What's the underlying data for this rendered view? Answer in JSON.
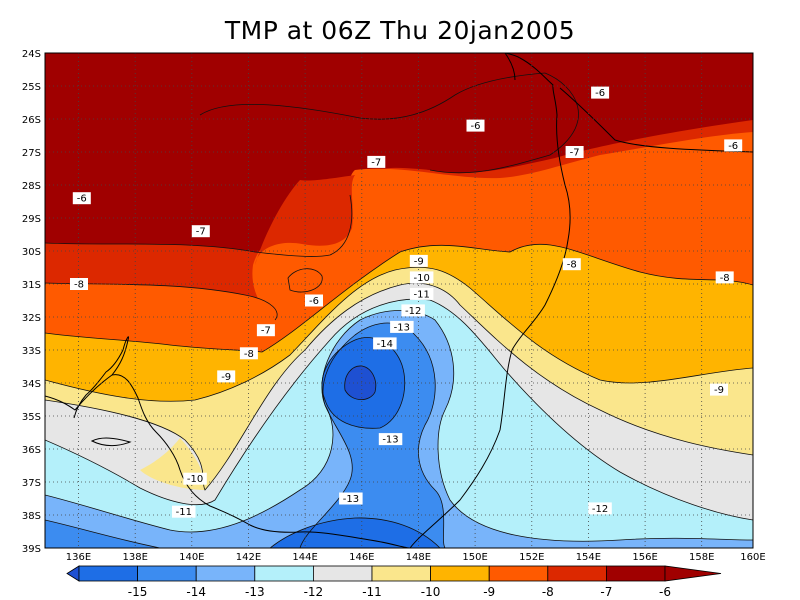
{
  "title": "TMP at 06Z Thu 20jan2005",
  "map": {
    "lat_labels": [
      "24S",
      "25S",
      "26S",
      "27S",
      "28S",
      "29S",
      "30S",
      "31S",
      "32S",
      "33S",
      "34S",
      "35S",
      "36S",
      "37S",
      "38S",
      "39S"
    ],
    "lon_labels": [
      "136E",
      "138E",
      "140E",
      "142E",
      "144E",
      "146E",
      "148E",
      "150E",
      "152E",
      "154E",
      "156E",
      "158E",
      "160E"
    ],
    "contour_labels": [
      {
        "text": "-6",
        "lon": 154.6,
        "lat": -25.2
      },
      {
        "text": "-6",
        "lon": 150.2,
        "lat": -26.2
      },
      {
        "text": "-6",
        "lon": 159.3,
        "lat": -26.8
      },
      {
        "text": "-6",
        "lon": 136.3,
        "lat": -28.4
      },
      {
        "text": "-6",
        "lon": 144.5,
        "lat": -31.5
      },
      {
        "text": "-7",
        "lon": 146.7,
        "lat": -27.3
      },
      {
        "text": "-7",
        "lon": 153.7,
        "lat": -27.0
      },
      {
        "text": "-7",
        "lon": 140.5,
        "lat": -29.4
      },
      {
        "text": "-7",
        "lon": 142.8,
        "lat": -32.4
      },
      {
        "text": "-8",
        "lon": 136.2,
        "lat": -31.0
      },
      {
        "text": "-8",
        "lon": 142.2,
        "lat": -33.1
      },
      {
        "text": "-8",
        "lon": 153.6,
        "lat": -30.4
      },
      {
        "text": "-8",
        "lon": 159.0,
        "lat": -30.8
      },
      {
        "text": "-9",
        "lon": 141.4,
        "lat": -33.8
      },
      {
        "text": "-9",
        "lon": 148.2,
        "lat": -30.3
      },
      {
        "text": "-9",
        "lon": 158.8,
        "lat": -34.2
      },
      {
        "text": "-10",
        "lon": 148.3,
        "lat": -30.8
      },
      {
        "text": "-10",
        "lon": 140.3,
        "lat": -36.9
      },
      {
        "text": "-11",
        "lon": 148.3,
        "lat": -31.3
      },
      {
        "text": "-11",
        "lon": 139.9,
        "lat": -37.9
      },
      {
        "text": "-12",
        "lon": 148.0,
        "lat": -31.8
      },
      {
        "text": "-12",
        "lon": 154.6,
        "lat": -37.8
      },
      {
        "text": "-13",
        "lon": 147.6,
        "lat": -32.3
      },
      {
        "text": "-13",
        "lon": 147.2,
        "lat": -35.7
      },
      {
        "text": "-13",
        "lon": 145.8,
        "lat": -37.5
      },
      {
        "text": "-14",
        "lon": 147.0,
        "lat": -32.8
      }
    ]
  },
  "colorbar": {
    "labels": [
      "-15",
      "-14",
      "-13",
      "-12",
      "-11",
      "-10",
      "-9",
      "-8",
      "-7",
      "-6"
    ],
    "colors": [
      "#1e6ee6",
      "#3c8cf0",
      "#78b4fa",
      "#b4f0fa",
      "#e6e6e6",
      "#fae68c",
      "#ffb400",
      "#ff5a00",
      "#dc2800",
      "#a00000"
    ]
  },
  "palette": {
    "b15": "#1e50d2",
    "b14": "#1e6ee6",
    "b13": "#3c8cf0",
    "b12": "#78b4fa",
    "b11": "#b4f0fa",
    "b10": "#e6e6e6",
    "b9": "#fae68c",
    "b8": "#ffb400",
    "b7": "#ff5a00",
    "b6": "#dc2800",
    "b5": "#a00000"
  }
}
